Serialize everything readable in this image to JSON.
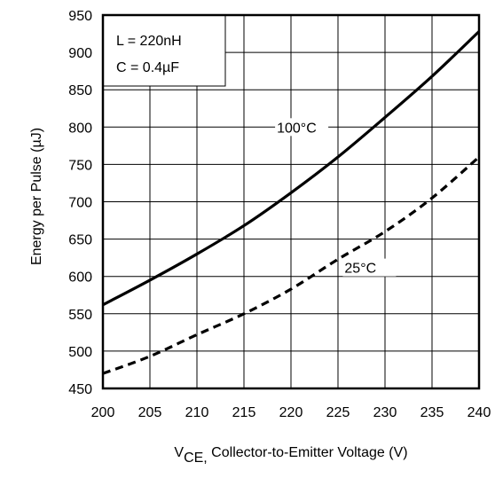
{
  "chart_data": {
    "type": "line",
    "title": "",
    "xlabel_main": "V",
    "xlabel_sub": "CE,",
    "xlabel_rest": " Collector-to-Emitter Voltage (V)",
    "ylabel": "Energy per Pulse (µJ)",
    "xlim": [
      200,
      240
    ],
    "ylim": [
      450,
      950
    ],
    "xticks": [
      200,
      205,
      210,
      215,
      220,
      225,
      230,
      235,
      240
    ],
    "yticks": [
      450,
      500,
      550,
      600,
      650,
      700,
      750,
      800,
      850,
      900,
      950
    ],
    "grid": true,
    "legend_box": {
      "placement": "top-left",
      "lines": [
        "L = 220nH",
        "C = 0.4µF"
      ]
    },
    "series": [
      {
        "name": "100°C",
        "style": "solid",
        "color": "#000000",
        "x": [
          200,
          205,
          210,
          215,
          220,
          225,
          230,
          235,
          240
        ],
        "y": [
          562,
          595,
          630,
          668,
          712,
          760,
          813,
          868,
          928
        ]
      },
      {
        "name": "25°C",
        "style": "dashed",
        "color": "#000000",
        "x": [
          200,
          205,
          210,
          215,
          220,
          225,
          230,
          235,
          240
        ],
        "y": [
          470,
          493,
          522,
          550,
          583,
          623,
          660,
          705,
          760
        ]
      }
    ]
  }
}
